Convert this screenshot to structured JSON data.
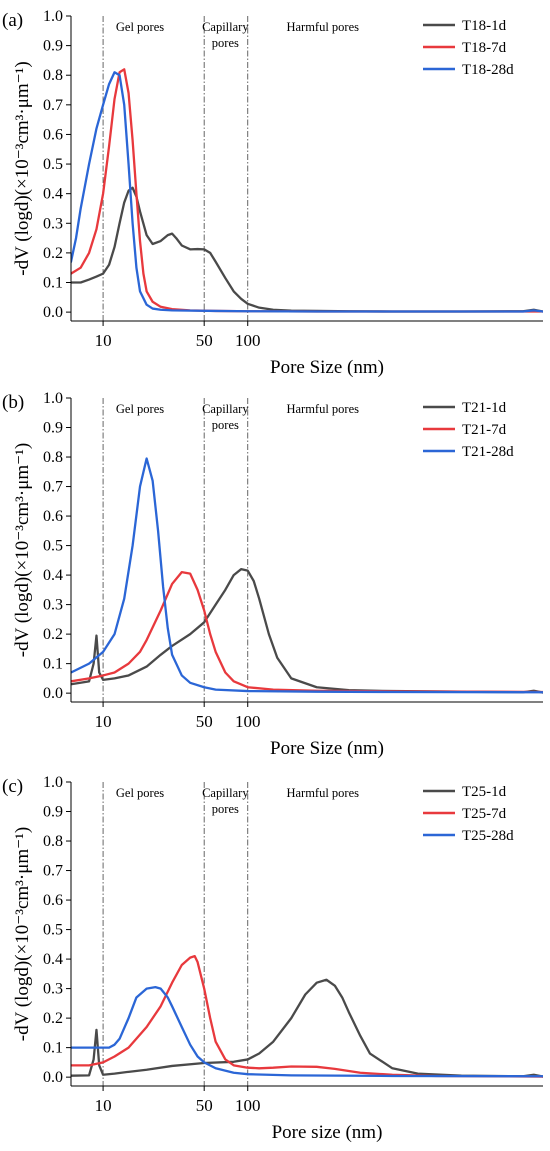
{
  "colors": {
    "gray": "#4a4a4a",
    "red": "#e8393d",
    "blue": "#2b66d6",
    "axis": "#000000"
  },
  "chart_data": [
    {
      "type": "line",
      "panel_label": "(a)",
      "xlabel": "Pore Size (nm)",
      "ylabel": "-dV (logd)(×10⁻³cm³·μm⁻¹)",
      "x_scale": "log",
      "xlim": [
        6,
        11000
      ],
      "ylim": [
        -0.03,
        1.0
      ],
      "x_ticks": [
        10,
        50,
        100
      ],
      "x_tick_labels": [
        "10",
        "50",
        "100"
      ],
      "y_ticks": [
        0.0,
        0.1,
        0.2,
        0.3,
        0.4,
        0.5,
        0.6,
        0.7,
        0.8,
        0.9,
        1.0
      ],
      "y_tick_labels": [
        "0.0",
        "0.1",
        "0.2",
        "0.3",
        "0.4",
        "0.5",
        "0.6",
        "0.7",
        "0.8",
        "0.9",
        "1.0"
      ],
      "region_dividers": [
        10,
        50,
        100
      ],
      "region_labels": [
        {
          "text": "Gel pores",
          "x": 18
        },
        {
          "text": "Capillary",
          "x": 70
        },
        {
          "text": "pores",
          "x": 70
        },
        {
          "text": "Harmful pores",
          "x": 330
        }
      ],
      "legend_position": "top-right",
      "series": [
        {
          "name": "T18-1d",
          "color": "#4a4a4a",
          "x": [
            6,
            7,
            8,
            9,
            10,
            11,
            12,
            13,
            14,
            15,
            16,
            17,
            18,
            20,
            22,
            25,
            28,
            30,
            32,
            35,
            40,
            45,
            50,
            55,
            60,
            70,
            80,
            90,
            100,
            120,
            150,
            200,
            300,
            500,
            1000,
            3000,
            8000,
            9500,
            11000
          ],
          "y": [
            0.1,
            0.1,
            0.11,
            0.12,
            0.13,
            0.16,
            0.22,
            0.3,
            0.37,
            0.41,
            0.42,
            0.39,
            0.34,
            0.26,
            0.23,
            0.24,
            0.26,
            0.265,
            0.25,
            0.225,
            0.212,
            0.213,
            0.212,
            0.2,
            0.17,
            0.115,
            0.07,
            0.045,
            0.028,
            0.015,
            0.008,
            0.005,
            0.004,
            0.003,
            0.002,
            0.002,
            0.003,
            0.008,
            0.002
          ]
        },
        {
          "name": "T18-7d",
          "color": "#e8393d",
          "x": [
            6,
            7,
            8,
            9,
            10,
            11,
            12,
            13,
            14,
            15,
            16,
            17,
            18,
            19,
            20,
            22,
            25,
            30,
            40,
            60,
            100,
            300,
            1000,
            11000
          ],
          "y": [
            0.13,
            0.15,
            0.2,
            0.28,
            0.4,
            0.56,
            0.72,
            0.81,
            0.82,
            0.74,
            0.58,
            0.4,
            0.24,
            0.13,
            0.07,
            0.035,
            0.018,
            0.01,
            0.006,
            0.004,
            0.003,
            0.002,
            0.002,
            0.002
          ]
        },
        {
          "name": "T18-28d",
          "color": "#2b66d6",
          "x": [
            6,
            6.5,
            7,
            8,
            9,
            10,
            11,
            12,
            13,
            14,
            15,
            16,
            17,
            18,
            20,
            22,
            25,
            30,
            40,
            60,
            100,
            300,
            1000,
            8000,
            9500,
            11000
          ],
          "y": [
            0.17,
            0.25,
            0.35,
            0.5,
            0.62,
            0.7,
            0.77,
            0.81,
            0.8,
            0.7,
            0.5,
            0.3,
            0.15,
            0.07,
            0.025,
            0.012,
            0.008,
            0.006,
            0.005,
            0.004,
            0.003,
            0.002,
            0.002,
            0.002,
            0.006,
            0.002
          ]
        }
      ]
    },
    {
      "type": "line",
      "panel_label": "(b)",
      "xlabel": "Pore Size (nm)",
      "ylabel": "-dV (logd)(×10⁻³cm³·μm⁻¹)",
      "x_scale": "log",
      "xlim": [
        6,
        11000
      ],
      "ylim": [
        -0.03,
        1.0
      ],
      "x_ticks": [
        10,
        50,
        100
      ],
      "x_tick_labels": [
        "10",
        "50",
        "100"
      ],
      "y_ticks": [
        0.0,
        0.1,
        0.2,
        0.3,
        0.4,
        0.5,
        0.6,
        0.7,
        0.8,
        0.9,
        1.0
      ],
      "y_tick_labels": [
        "0.0",
        "0.1",
        "0.2",
        "0.3",
        "0.4",
        "0.5",
        "0.6",
        "0.7",
        "0.8",
        "0.9",
        "1.0"
      ],
      "region_dividers": [
        10,
        50,
        100
      ],
      "region_labels": [
        {
          "text": "Gel pores",
          "x": 18
        },
        {
          "text": "Capillary",
          "x": 70
        },
        {
          "text": "pores",
          "x": 70
        },
        {
          "text": "Harmful pores",
          "x": 330
        }
      ],
      "legend_position": "top-right",
      "series": [
        {
          "name": "T21-1d",
          "color": "#4a4a4a",
          "x": [
            6,
            8,
            8.6,
            9,
            9.4,
            10,
            12,
            15,
            20,
            25,
            30,
            40,
            50,
            60,
            70,
            80,
            90,
            100,
            110,
            120,
            140,
            160,
            200,
            300,
            500,
            1000,
            3000,
            8000,
            9500,
            11000
          ],
          "y": [
            0.03,
            0.04,
            0.1,
            0.195,
            0.07,
            0.045,
            0.05,
            0.06,
            0.09,
            0.13,
            0.16,
            0.2,
            0.24,
            0.3,
            0.35,
            0.4,
            0.42,
            0.415,
            0.38,
            0.32,
            0.2,
            0.12,
            0.05,
            0.02,
            0.01,
            0.007,
            0.005,
            0.003,
            0.008,
            0.002
          ]
        },
        {
          "name": "T21-7d",
          "color": "#e8393d",
          "x": [
            6,
            8,
            10,
            12,
            15,
            18,
            20,
            25,
            30,
            35,
            40,
            45,
            50,
            55,
            60,
            70,
            80,
            100,
            150,
            300,
            1000,
            11000
          ],
          "y": [
            0.04,
            0.05,
            0.06,
            0.07,
            0.1,
            0.14,
            0.18,
            0.28,
            0.37,
            0.41,
            0.405,
            0.35,
            0.28,
            0.2,
            0.14,
            0.07,
            0.04,
            0.02,
            0.012,
            0.008,
            0.006,
            0.004
          ]
        },
        {
          "name": "T21-28d",
          "color": "#2b66d6",
          "x": [
            6,
            8,
            10,
            12,
            14,
            16,
            18,
            20,
            22,
            24,
            26,
            28,
            30,
            35,
            40,
            50,
            60,
            100,
            300,
            1000,
            11000
          ],
          "y": [
            0.07,
            0.1,
            0.14,
            0.2,
            0.32,
            0.5,
            0.7,
            0.795,
            0.72,
            0.55,
            0.36,
            0.22,
            0.13,
            0.06,
            0.035,
            0.02,
            0.012,
            0.007,
            0.005,
            0.004,
            0.003
          ]
        }
      ]
    },
    {
      "type": "line",
      "panel_label": "(c)",
      "xlabel": "Pore size (nm)",
      "ylabel": "-dV (logd)(×10⁻³cm³·μm⁻¹)",
      "x_scale": "log",
      "xlim": [
        6,
        11000
      ],
      "ylim": [
        -0.03,
        1.0
      ],
      "x_ticks": [
        10,
        50,
        100
      ],
      "x_tick_labels": [
        "10",
        "50",
        "100"
      ],
      "y_ticks": [
        0.0,
        0.1,
        0.2,
        0.3,
        0.4,
        0.5,
        0.6,
        0.7,
        0.8,
        0.9,
        1.0
      ],
      "y_tick_labels": [
        "0.0",
        "0.1",
        "0.2",
        "0.3",
        "0.4",
        "0.5",
        "0.6",
        "0.7",
        "0.8",
        "0.9",
        "1.0"
      ],
      "region_dividers": [
        10,
        50,
        100
      ],
      "region_labels": [
        {
          "text": "Gel pores",
          "x": 18
        },
        {
          "text": "Capillary",
          "x": 70
        },
        {
          "text": "pores",
          "x": 70
        },
        {
          "text": "Harmful pores",
          "x": 330
        }
      ],
      "legend_position": "top-right",
      "series": [
        {
          "name": "T25-1d",
          "color": "#4a4a4a",
          "x": [
            6,
            8,
            8.6,
            9,
            9.4,
            10,
            12,
            15,
            20,
            30,
            50,
            80,
            100,
            120,
            150,
            200,
            250,
            300,
            350,
            400,
            450,
            500,
            600,
            700,
            1000,
            1500,
            3000,
            8000,
            9500,
            11000
          ],
          "y": [
            0.005,
            0.006,
            0.06,
            0.16,
            0.04,
            0.008,
            0.012,
            0.018,
            0.025,
            0.038,
            0.048,
            0.052,
            0.06,
            0.08,
            0.12,
            0.2,
            0.28,
            0.32,
            0.33,
            0.31,
            0.27,
            0.22,
            0.14,
            0.08,
            0.03,
            0.012,
            0.005,
            0.003,
            0.008,
            0.002
          ]
        },
        {
          "name": "T25-7d",
          "color": "#e8393d",
          "x": [
            6,
            8,
            10,
            12,
            15,
            20,
            25,
            30,
            35,
            40,
            43,
            45,
            50,
            55,
            60,
            70,
            80,
            100,
            120,
            150,
            200,
            300,
            400,
            600,
            1000,
            2000,
            11000
          ],
          "y": [
            0.04,
            0.04,
            0.05,
            0.07,
            0.1,
            0.17,
            0.24,
            0.32,
            0.38,
            0.405,
            0.41,
            0.39,
            0.3,
            0.2,
            0.12,
            0.06,
            0.04,
            0.032,
            0.03,
            0.032,
            0.036,
            0.035,
            0.028,
            0.015,
            0.008,
            0.004,
            0.002
          ]
        },
        {
          "name": "T25-28d",
          "color": "#2b66d6",
          "x": [
            6,
            8,
            10,
            11,
            12,
            13,
            15,
            17,
            20,
            23,
            25,
            28,
            30,
            35,
            40,
            45,
            50,
            60,
            80,
            100,
            200,
            1000,
            11000
          ],
          "y": [
            0.1,
            0.1,
            0.1,
            0.1,
            0.11,
            0.13,
            0.2,
            0.27,
            0.3,
            0.305,
            0.3,
            0.27,
            0.24,
            0.17,
            0.11,
            0.07,
            0.05,
            0.03,
            0.015,
            0.01,
            0.006,
            0.004,
            0.003
          ]
        }
      ]
    }
  ]
}
